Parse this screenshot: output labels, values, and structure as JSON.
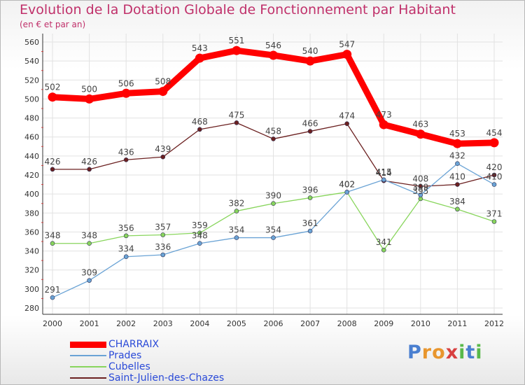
{
  "header": {
    "title": "Evolution de la Dotation Globale de Fonctionnement par Habitant",
    "subtitle": "(en € et par an)"
  },
  "logo": {
    "text": "Proxiti"
  },
  "chart_data": {
    "type": "line",
    "title": "Evolution de la Dotation Globale de Fonctionnement par Habitant",
    "subtitle": "(en € et par an)",
    "xlabel": "",
    "ylabel": "",
    "ylim": [
      280,
      560
    ],
    "yticks": [
      280,
      300,
      320,
      340,
      360,
      380,
      400,
      420,
      440,
      460,
      480,
      500,
      520,
      540,
      560
    ],
    "grid": true,
    "legend_position": "bottom-left",
    "categories": [
      "2000",
      "2001",
      "2002",
      "2003",
      "2004",
      "2005",
      "2006",
      "2007",
      "2008",
      "2009",
      "2010",
      "2011",
      "2012"
    ],
    "series": [
      {
        "name": "CHARRAIX",
        "color": "#ff0000",
        "values": [
          502,
          500,
          506,
          508,
          543,
          551,
          546,
          540,
          547,
          473,
          463,
          453,
          454
        ]
      },
      {
        "name": "Prades",
        "color": "#6aa3d5",
        "values": [
          291,
          309,
          334,
          336,
          348,
          354,
          354,
          361,
          402,
          415,
          399,
          432,
          410
        ]
      },
      {
        "name": "Cubelles",
        "color": "#88d55c",
        "values": [
          348,
          348,
          356,
          357,
          359,
          382,
          390,
          396,
          402,
          341,
          395,
          384,
          371
        ]
      },
      {
        "name": "Saint-Julien-des-Chazes",
        "color": "#6b2020",
        "values": [
          426,
          426,
          436,
          439,
          468,
          475,
          458,
          466,
          474,
          414,
          408,
          410,
          420
        ]
      }
    ]
  }
}
